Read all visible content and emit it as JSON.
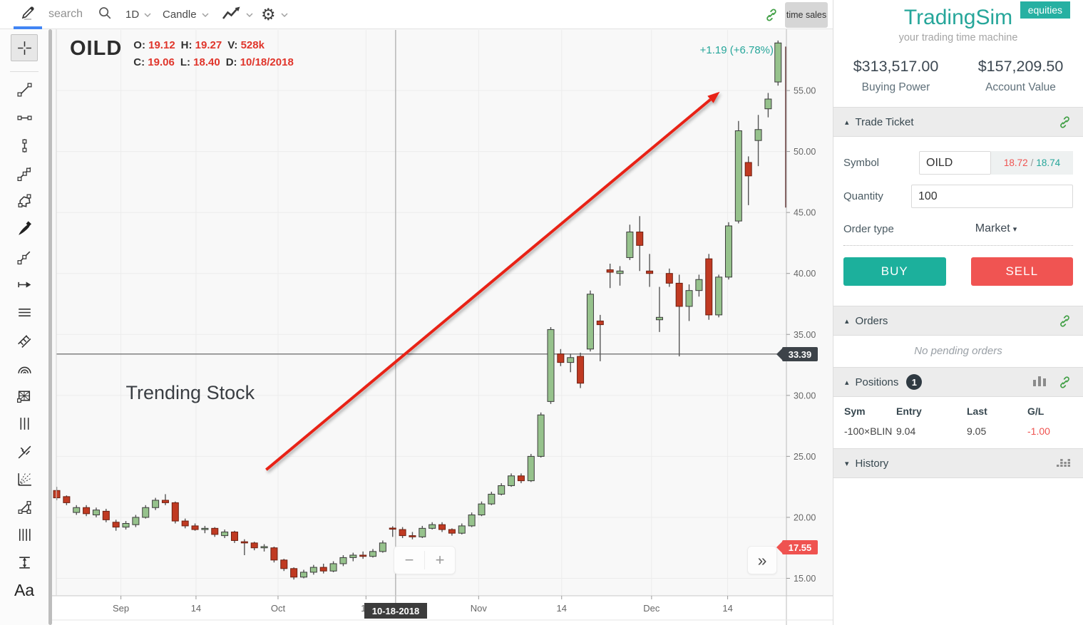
{
  "colors": {
    "accent_teal": "#26a69a",
    "buy_green": "#1cb09c",
    "sell_red": "#f05452",
    "candle_up_fill": "#96c28c",
    "candle_up_stroke": "#3b3b3b",
    "candle_down_fill": "#c03a22",
    "candle_down_stroke": "#6e2012",
    "wick": "#555555",
    "grid": "#ececec",
    "crosshair": "#999999",
    "price_line": "#7f7f7f",
    "arrow_red": "#e82417",
    "current_bar": "#6b4040",
    "axis_text": "#666666",
    "tab_underline_blue": "#4285f4"
  },
  "toolbar": {
    "search_placeholder": "search",
    "timeframe": "1D",
    "chart_type": "Candle",
    "time_sales_label": "time sales"
  },
  "sidebar": {
    "tools": [
      {
        "name": "crosshair",
        "icon": "crosshair",
        "selected": true
      },
      {
        "name": "trend-line",
        "icon": "trendline"
      },
      {
        "name": "horizontal-line",
        "icon": "hline"
      },
      {
        "name": "vertical-line",
        "icon": "vline"
      },
      {
        "name": "extended-line",
        "icon": "extline"
      },
      {
        "name": "polyline",
        "icon": "polyline"
      },
      {
        "name": "brush",
        "icon": "brush"
      },
      {
        "name": "ray",
        "icon": "ray"
      },
      {
        "name": "arrow-line",
        "icon": "arrowline"
      },
      {
        "name": "horizontal-channel",
        "icon": "hchannel"
      },
      {
        "name": "parallel-channel",
        "icon": "pchannel"
      },
      {
        "name": "fib-arcs",
        "icon": "fibarcs"
      },
      {
        "name": "gann-box",
        "icon": "gannbox"
      },
      {
        "name": "vertical-channel",
        "icon": "vchannel"
      },
      {
        "name": "pitchfork",
        "icon": "pitchfork"
      },
      {
        "name": "gann-fan",
        "icon": "gannfan"
      },
      {
        "name": "triangle",
        "icon": "triangle"
      },
      {
        "name": "vertical-lines",
        "icon": "vlines"
      },
      {
        "name": "price-range",
        "icon": "pricerange"
      },
      {
        "name": "text",
        "icon": "text"
      }
    ]
  },
  "chart": {
    "symbol": "OILD",
    "ohlc": {
      "o_label": "O:",
      "o": "19.12",
      "h_label": "H:",
      "h": "19.27",
      "v_label": "V:",
      "v": "528k",
      "c_label": "C:",
      "c": "19.06",
      "l_label": "L:",
      "l": "18.40",
      "d_label": "D:",
      "d": "10/18/2018"
    },
    "change_label": "+1.19 (+6.78%)",
    "date_tag": "10-18-2018",
    "price_line_tag": "33.39",
    "last_price_tag": "17.55",
    "zoom_out": "−",
    "zoom_in": "+",
    "fast_forward": "»"
  },
  "chart_data": {
    "type": "candlestick",
    "symbol": "OILD",
    "timeframe": "1D",
    "ylim": [
      14.5,
      59.5
    ],
    "yticks": [
      15,
      20,
      25,
      30,
      35,
      40,
      45,
      50,
      55
    ],
    "grid": true,
    "xticks": [
      {
        "label": "Sep",
        "i": 6.5
      },
      {
        "label": "14",
        "i": 14.1
      },
      {
        "label": "Oct",
        "i": 22.4
      },
      {
        "label": "14",
        "i": 31.3
      },
      {
        "label": "Nov",
        "i": 42.7
      },
      {
        "label": "14",
        "i": 51.1
      },
      {
        "label": "Dec",
        "i": 60.2
      },
      {
        "label": "14",
        "i": 67.9
      }
    ],
    "crosshair": {
      "i": 34.3,
      "label": "10-18-2018"
    },
    "price_line": 33.39,
    "last_price": 17.55,
    "current_bar": {
      "i": 73.8,
      "from": 58.6,
      "to": 45.4
    },
    "trend_arrow": {
      "from": {
        "i": 21.2,
        "price": 23.9
      },
      "to": {
        "i": 67.1,
        "price": 54.9
      }
    },
    "text_annotation": {
      "i": 7,
      "price": 29.7,
      "text": "Trending Stock"
    },
    "candles": [
      [
        22.2,
        22.5,
        21.4,
        21.6
      ],
      [
        21.7,
        21.8,
        21.0,
        21.2
      ],
      [
        20.4,
        21.0,
        20.2,
        20.8
      ],
      [
        20.8,
        21.0,
        20.1,
        20.3
      ],
      [
        20.2,
        20.8,
        20.0,
        20.6
      ],
      [
        20.5,
        20.7,
        19.6,
        19.8
      ],
      [
        19.6,
        19.8,
        18.9,
        19.2
      ],
      [
        19.2,
        19.7,
        19.0,
        19.5
      ],
      [
        19.4,
        20.2,
        19.2,
        20.0
      ],
      [
        20.0,
        21.0,
        19.9,
        20.8
      ],
      [
        20.8,
        21.6,
        20.6,
        21.4
      ],
      [
        21.4,
        21.9,
        21.0,
        21.2
      ],
      [
        21.2,
        21.3,
        19.5,
        19.7
      ],
      [
        19.7,
        19.9,
        19.1,
        19.3
      ],
      [
        19.3,
        19.5,
        18.9,
        19.0
      ],
      [
        19.0,
        19.3,
        18.7,
        19.1
      ],
      [
        19.1,
        19.2,
        18.4,
        18.6
      ],
      [
        18.5,
        19.0,
        18.3,
        18.8
      ],
      [
        18.8,
        18.9,
        17.9,
        18.1
      ],
      [
        18.0,
        18.2,
        16.9,
        17.9
      ],
      [
        17.9,
        18.0,
        17.3,
        17.5
      ],
      [
        17.5,
        17.8,
        17.2,
        17.6
      ],
      [
        17.5,
        17.6,
        16.3,
        16.5
      ],
      [
        16.5,
        16.6,
        15.6,
        15.8
      ],
      [
        15.8,
        15.9,
        14.9,
        15.1
      ],
      [
        15.1,
        15.7,
        15.0,
        15.5
      ],
      [
        15.5,
        16.1,
        15.3,
        15.9
      ],
      [
        15.9,
        16.2,
        15.4,
        15.6
      ],
      [
        15.6,
        16.4,
        15.5,
        16.2
      ],
      [
        16.2,
        16.9,
        16.0,
        16.7
      ],
      [
        16.7,
        17.1,
        16.4,
        16.9
      ],
      [
        16.9,
        17.2,
        16.6,
        16.8
      ],
      [
        16.8,
        17.4,
        16.7,
        17.2
      ],
      [
        17.2,
        18.1,
        17.1,
        17.9
      ],
      [
        19.12,
        19.27,
        18.4,
        19.06
      ],
      [
        19.0,
        19.2,
        18.3,
        18.5
      ],
      [
        18.5,
        18.8,
        18.2,
        18.4
      ],
      [
        18.4,
        19.3,
        18.3,
        19.1
      ],
      [
        19.1,
        19.6,
        19.0,
        19.4
      ],
      [
        19.4,
        19.6,
        18.8,
        19.0
      ],
      [
        19.0,
        19.1,
        18.5,
        18.7
      ],
      [
        18.7,
        19.5,
        18.6,
        19.3
      ],
      [
        19.3,
        20.4,
        19.2,
        20.2
      ],
      [
        20.2,
        21.3,
        20.1,
        21.1
      ],
      [
        21.1,
        22.1,
        21.0,
        21.9
      ],
      [
        21.9,
        22.8,
        21.8,
        22.6
      ],
      [
        22.6,
        23.6,
        22.5,
        23.4
      ],
      [
        23.4,
        23.6,
        22.8,
        23.0
      ],
      [
        23.0,
        25.2,
        22.9,
        25.0
      ],
      [
        25.0,
        28.6,
        24.9,
        28.4
      ],
      [
        29.5,
        35.6,
        29.3,
        35.4
      ],
      [
        33.4,
        33.8,
        32.4,
        32.7
      ],
      [
        32.7,
        33.4,
        31.9,
        33.1
      ],
      [
        33.2,
        33.5,
        30.6,
        31.0
      ],
      [
        33.8,
        38.6,
        33.6,
        38.3
      ],
      [
        36.1,
        36.6,
        32.8,
        35.8
      ],
      [
        40.3,
        40.8,
        38.8,
        40.1
      ],
      [
        40.0,
        40.6,
        39.0,
        40.2
      ],
      [
        41.3,
        44.0,
        41.1,
        43.4
      ],
      [
        43.4,
        44.7,
        40.2,
        42.3
      ],
      [
        40.2,
        41.6,
        38.9,
        40.0
      ],
      [
        36.2,
        38.9,
        35.2,
        36.4
      ],
      [
        40.0,
        40.4,
        38.9,
        39.2
      ],
      [
        39.2,
        39.9,
        33.2,
        37.3
      ],
      [
        37.3,
        39.1,
        36.1,
        38.6
      ],
      [
        38.6,
        39.9,
        38.1,
        39.5
      ],
      [
        41.2,
        41.6,
        36.2,
        36.6
      ],
      [
        36.6,
        39.9,
        36.4,
        39.7
      ],
      [
        39.7,
        44.2,
        39.5,
        43.9
      ],
      [
        44.3,
        52.5,
        44.1,
        51.7
      ],
      [
        49.1,
        49.6,
        45.6,
        48.0
      ],
      [
        50.9,
        53.0,
        48.8,
        51.8
      ],
      [
        53.5,
        54.8,
        52.8,
        54.3
      ],
      [
        55.7,
        59.1,
        55.4,
        58.9
      ]
    ]
  },
  "panel": {
    "brand": {
      "title": "TradingSim",
      "tagline": "your trading time machine",
      "badge": "equities"
    },
    "account": {
      "buying_power": "$313,517.00",
      "buying_power_label": "Buying Power",
      "account_value": "$157,209.50",
      "account_value_label": "Account Value"
    },
    "trade_ticket": {
      "header": "Trade Ticket",
      "symbol_label": "Symbol",
      "symbol_value": "OILD",
      "bid": "18.72",
      "quote_sep": "/",
      "ask": "18.74",
      "quantity_label": "Quantity",
      "quantity_value": "100",
      "order_type_label": "Order type",
      "order_type_value": "Market",
      "buy_label": "BUY",
      "sell_label": "SELL"
    },
    "orders": {
      "header": "Orders",
      "empty_text": "No pending orders"
    },
    "positions": {
      "header": "Positions",
      "count": "1",
      "columns": [
        "Sym",
        "Entry",
        "Last",
        "G/L"
      ],
      "rows": [
        {
          "sym": "-100×BLIN",
          "entry": "9.04",
          "last": "9.05",
          "gl": "-1.00"
        }
      ]
    },
    "history": {
      "header": "History"
    }
  }
}
